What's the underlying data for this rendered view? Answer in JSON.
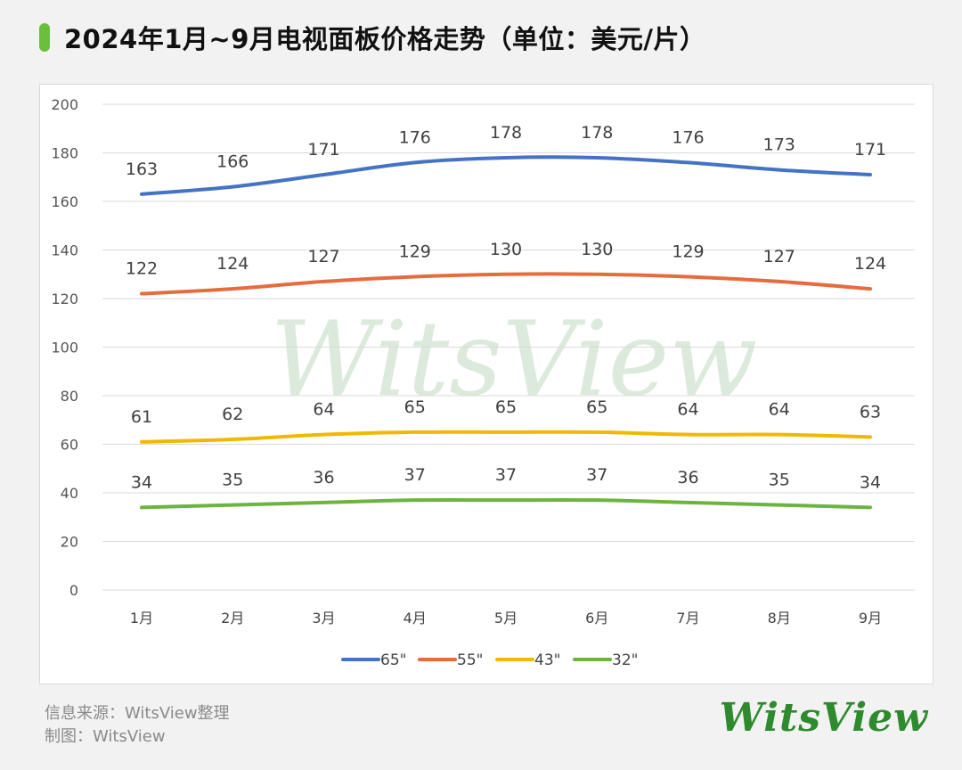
{
  "header": {
    "title": "2024年1月~9月电视面板价格走势（单位：美元/片）"
  },
  "footer": {
    "source": "信息来源：WitsView整理",
    "chart_by": "制图：WitsView"
  },
  "watermark": {
    "text": "WitsView"
  },
  "brand": {
    "logo_text": "WitsView"
  },
  "colors": {
    "accent": "#6cbf3c",
    "s65": "#4472c4",
    "s55": "#e46c3f",
    "s43": "#f0b900",
    "s32": "#6cb33f"
  },
  "chart_data": {
    "type": "line",
    "title": "2024年1月~9月电视面板价格走势（单位：美元/片）",
    "xlabel": "",
    "ylabel": "",
    "categories": [
      "1月",
      "2月",
      "3月",
      "4月",
      "5月",
      "6月",
      "7月",
      "8月",
      "9月"
    ],
    "ylim": [
      0,
      200
    ],
    "yticks": [
      0,
      20,
      40,
      60,
      80,
      100,
      120,
      140,
      160,
      180,
      200
    ],
    "grid": true,
    "legend": "bottom",
    "series": [
      {
        "name": "65\"",
        "color": "#4472c4",
        "values": [
          163,
          166,
          171,
          176,
          178,
          178,
          176,
          173,
          171
        ]
      },
      {
        "name": "55\"",
        "color": "#e46c3f",
        "values": [
          122,
          124,
          127,
          129,
          130,
          130,
          129,
          127,
          124
        ]
      },
      {
        "name": "43\"",
        "color": "#f0b900",
        "values": [
          61,
          62,
          64,
          65,
          65,
          65,
          64,
          64,
          63
        ]
      },
      {
        "name": "32\"",
        "color": "#6cb33f",
        "values": [
          34,
          35,
          36,
          37,
          37,
          37,
          36,
          35,
          34
        ]
      }
    ]
  }
}
